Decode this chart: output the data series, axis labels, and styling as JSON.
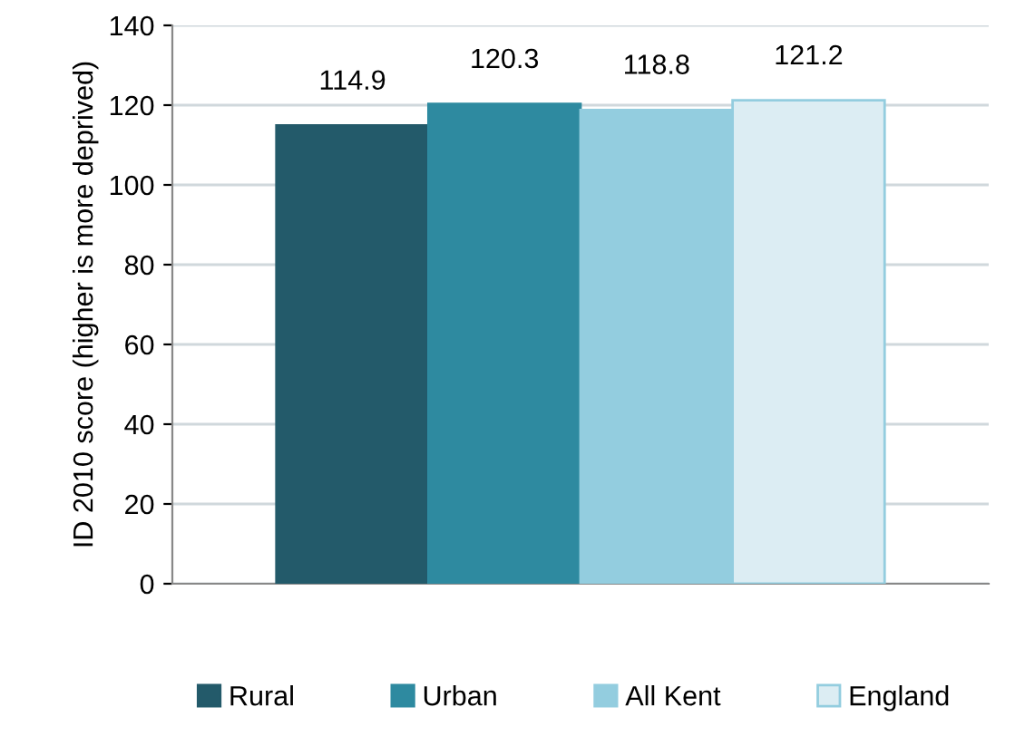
{
  "chart_data": {
    "type": "bar",
    "ylabel": "ID 2010 score (higher is more deprived)",
    "categories": [
      null
    ],
    "series": [
      {
        "name": "Rural",
        "color": "#235a6a",
        "values": [
          114.9
        ]
      },
      {
        "name": "Urban",
        "color": "#2e8aa0",
        "values": [
          120.3
        ]
      },
      {
        "name": "All Kent",
        "color": "#93cddf",
        "values": [
          118.8
        ]
      },
      {
        "name": "England",
        "color": "#dcedf3",
        "values": [
          121.2
        ]
      }
    ],
    "ylim": [
      0,
      140
    ],
    "yticks": [
      0,
      20,
      40,
      60,
      80,
      100,
      120,
      140
    ],
    "grid": "y",
    "legend": "bottom",
    "data_labels": true
  }
}
